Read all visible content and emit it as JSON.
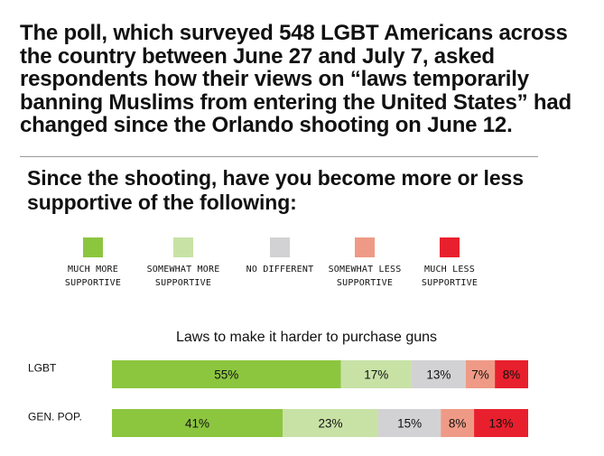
{
  "intro": "The poll, which surveyed 548 LGBT Americans across the country between June 27 and July 7, asked respondents how their views on “laws temporarily banning Muslims from entering the United States” had changed since the Orlando shooting on June 12.",
  "question": "Since the shooting, have you become more or less supportive of the following:",
  "legend": [
    {
      "label": "MUCH  MORE\nSUPPORTIVE",
      "color": "#8cc63f"
    },
    {
      "label": "SOMEWHAT MORE\nSUPPORTIVE",
      "color": "#c8e2a6"
    },
    {
      "label": "NO DIFFERENT",
      "color": "#d2d2d4"
    },
    {
      "label": "SOMEWHAT LESS\nSUPPORTIVE",
      "color": "#ef9a86"
    },
    {
      "label": "MUCH LESS\nSUPPORTIVE",
      "color": "#e8202e"
    }
  ],
  "chart_data": {
    "type": "bar",
    "orientation": "horizontal",
    "stacked": true,
    "title": "Laws to make it harder to purchase guns",
    "categories": [
      "LGBT",
      "GEN. POP."
    ],
    "series": [
      {
        "name": "MUCH MORE SUPPORTIVE",
        "values": [
          55,
          41
        ],
        "labels": [
          "55%",
          "41%"
        ]
      },
      {
        "name": "SOMEWHAT MORE SUPPORTIVE",
        "values": [
          17,
          23
        ],
        "labels": [
          "17%",
          "23%"
        ]
      },
      {
        "name": "NO DIFFERENT",
        "values": [
          13,
          15
        ],
        "labels": [
          "13%",
          "15%"
        ]
      },
      {
        "name": "SOMEWHAT LESS SUPPORTIVE",
        "values": [
          7,
          8
        ],
        "labels": [
          "7%",
          "8%"
        ]
      },
      {
        "name": "MUCH LESS SUPPORTIVE",
        "values": [
          8,
          13
        ],
        "labels": [
          "8%",
          "13%"
        ]
      }
    ],
    "colors": [
      "#8cc63f",
      "#c8e2a6",
      "#d2d2d4",
      "#ef9a86",
      "#e8202e"
    ]
  }
}
